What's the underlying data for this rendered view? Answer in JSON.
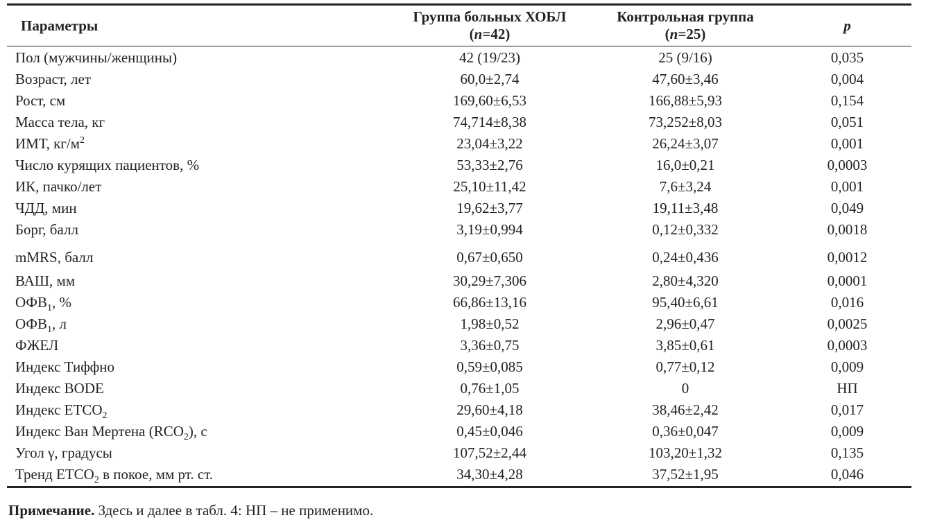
{
  "table": {
    "headers": {
      "param": "Параметры",
      "copd_line1": "Группа больных ХОБЛ",
      "copd_n": "n",
      "copd_val": "=42",
      "ctrl_line1": "Контрольная группа",
      "ctrl_n": "n",
      "ctrl_val": "=25",
      "p": "p"
    },
    "rows": [
      {
        "name": "Пол (мужчины/женщины)",
        "copd": "42 (19/23)",
        "ctrl": "25 (9/16)",
        "p": "0,035"
      },
      {
        "name": "Возраст, лет",
        "copd": "60,0±2,74",
        "ctrl": "47,60±3,46",
        "p": "0,004"
      },
      {
        "name": "Рост, см",
        "copd": "169,60±6,53",
        "ctrl": "166,88±5,93",
        "p": "0,154"
      },
      {
        "name": "Масса тела, кг",
        "copd": "74,714±8,38",
        "ctrl": "73,252±8,03",
        "p": "0,051"
      },
      {
        "name_pre": "ИМТ, кг/м",
        "name_sup": "2",
        "copd": "23,04±3,22",
        "ctrl": "26,24±3,07",
        "p": "0,001"
      },
      {
        "name": "Число курящих пациентов, %",
        "copd": "53,33±2,76",
        "ctrl": "16,0±0,21",
        "p": "0,0003"
      },
      {
        "name": "ИК, пачко/лет",
        "copd": "25,10±11,42",
        "ctrl": "7,6±3,24",
        "p": "0,001"
      },
      {
        "name": "ЧДД, мин",
        "copd": "19,62±3,77",
        "ctrl": "19,11±3,48",
        "p": "0,049"
      },
      {
        "name": "Борг, балл",
        "copd": "3,19±0,994",
        "ctrl": "0,12±0,332",
        "p": "0,0018"
      },
      {
        "name": "mMRS, балл",
        "copd": "0,67±0,650",
        "ctrl": "0,24±0,436",
        "p": "0,0012"
      },
      {
        "name": "ВАШ, мм",
        "copd": "30,29±7,306",
        "ctrl": "2,80±4,320",
        "p": "0,0001"
      },
      {
        "name_pre": "ОФВ",
        "name_sub": "1",
        "name_post": ", %",
        "copd": "66,86±13,16",
        "ctrl": "95,40±6,61",
        "p": "0,016"
      },
      {
        "name_pre": "ОФВ",
        "name_sub": "1",
        "name_post": ", л",
        "copd": "1,98±0,52",
        "ctrl": "2,96±0,47",
        "p": "0,0025"
      },
      {
        "name": "ФЖЕЛ",
        "copd": "3,36±0,75",
        "ctrl": "3,85±0,61",
        "p": "0,0003"
      },
      {
        "name": "Индекс Тиффно",
        "copd": "0,59±0,085",
        "ctrl": "0,77±0,12",
        "p": "0,009"
      },
      {
        "name": "Индекс BODE",
        "copd": "0,76±1,05",
        "ctrl": "0",
        "p": "НП"
      },
      {
        "name_pre": "Индекс ETCO",
        "name_sub": "2",
        "name_post": "",
        "copd": "29,60±4,18",
        "ctrl": "38,46±2,42",
        "p": "0,017"
      },
      {
        "name_pre": "Индекс Ван Мертена (RCO",
        "name_sub": "2",
        "name_post": "), с",
        "copd": "0,45±0,046",
        "ctrl": "0,36±0,047",
        "p": "0,009"
      },
      {
        "name": "Угол γ, градусы",
        "copd": "107,52±2,44",
        "ctrl": "103,20±1,32",
        "p": "0,135"
      },
      {
        "name_pre": "Тренд ETCO",
        "name_sub": "2",
        "name_post": " в покое, мм рт. ст.",
        "copd": "34,30±4,28",
        "ctrl": "37,52±1,95",
        "p": "0,046"
      }
    ]
  },
  "note": {
    "label": "Примечание.",
    "text": " Здесь и далее в табл. 4: НП – не применимо."
  }
}
